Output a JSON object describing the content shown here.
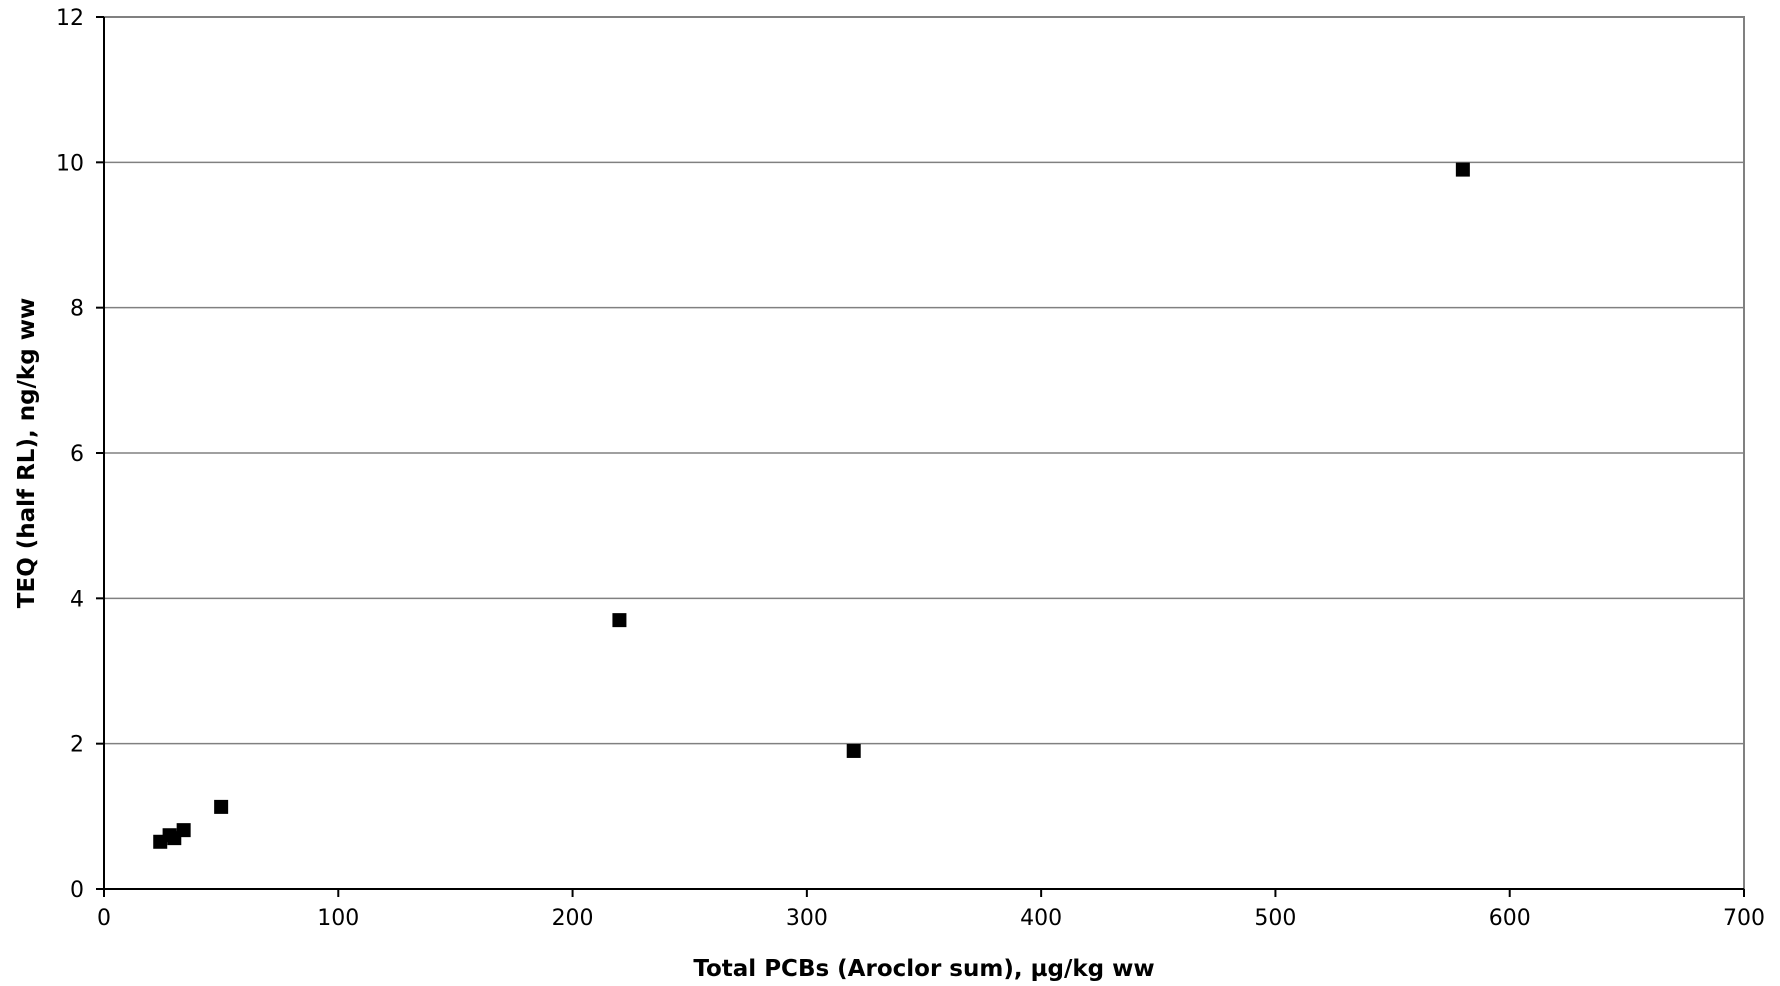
{
  "chart_data": {
    "type": "scatter",
    "title": "",
    "xlabel": "Total PCBs (Aroclor sum), µg/kg  ww",
    "ylabel": "TEQ (half RL), ng/kg ww",
    "xlim": [
      0,
      700
    ],
    "ylim": [
      0,
      12
    ],
    "xticks": [
      0,
      100,
      200,
      300,
      400,
      500,
      600,
      700
    ],
    "yticks": [
      0,
      2,
      4,
      6,
      8,
      10,
      12
    ],
    "grid": {
      "x": false,
      "y": true
    },
    "marker": {
      "shape": "square",
      "color": "#000000"
    },
    "series": [
      {
        "points": [
          {
            "x": 24,
            "y": 0.65
          },
          {
            "x": 28,
            "y": 0.74
          },
          {
            "x": 30,
            "y": 0.7
          },
          {
            "x": 34,
            "y": 0.81
          },
          {
            "x": 50,
            "y": 1.13
          },
          {
            "x": 220,
            "y": 3.7
          },
          {
            "x": 320,
            "y": 1.9
          },
          {
            "x": 580,
            "y": 9.9
          }
        ]
      }
    ]
  }
}
